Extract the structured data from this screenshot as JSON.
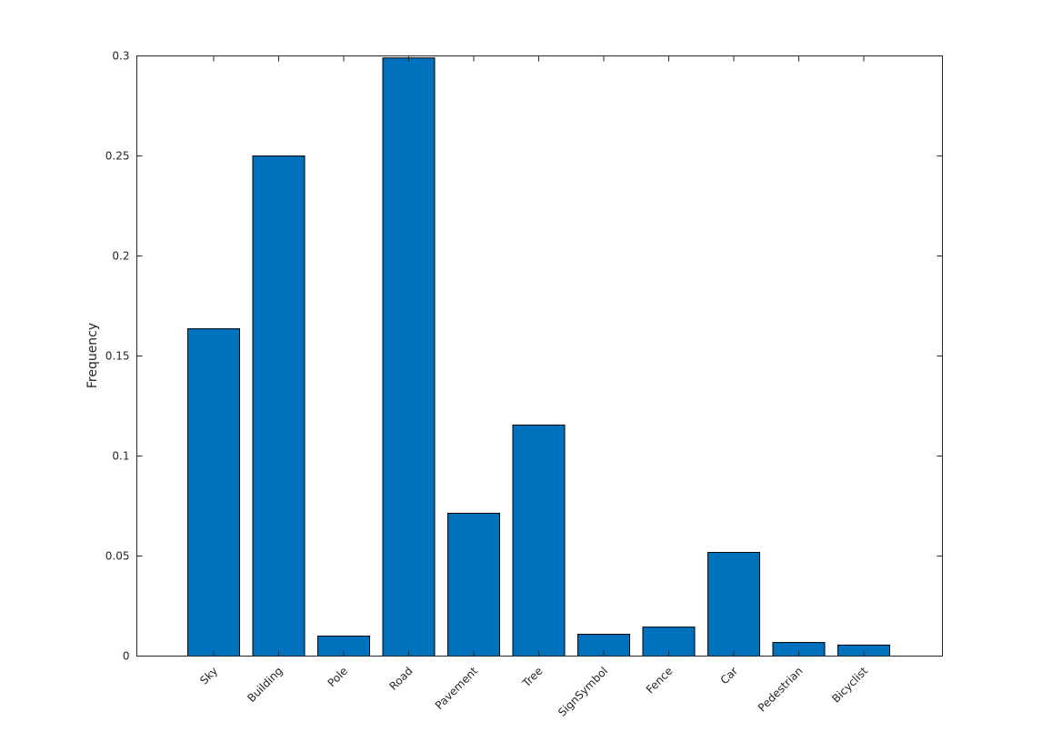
{
  "chart_data": {
    "type": "bar",
    "title": "",
    "xlabel": "",
    "ylabel": "Frequency",
    "categories": [
      "Sky",
      "Building",
      "Pole",
      "Road",
      "Pavement",
      "Tree",
      "SignSymbol",
      "Fence",
      "Car",
      "Pedestrian",
      "Bicyclist"
    ],
    "values": [
      0.1636,
      0.25,
      0.01,
      0.299,
      0.0714,
      0.1155,
      0.0109,
      0.0145,
      0.0518,
      0.0068,
      0.0055
    ],
    "ylim": [
      0,
      0.3
    ],
    "yticks": [
      "0",
      "0.05",
      "0.1",
      "0.15",
      "0.2",
      "0.25",
      "0.3"
    ],
    "grid": false,
    "bar_color": "#0072BD",
    "tick_label_rotation_deg": 45
  }
}
